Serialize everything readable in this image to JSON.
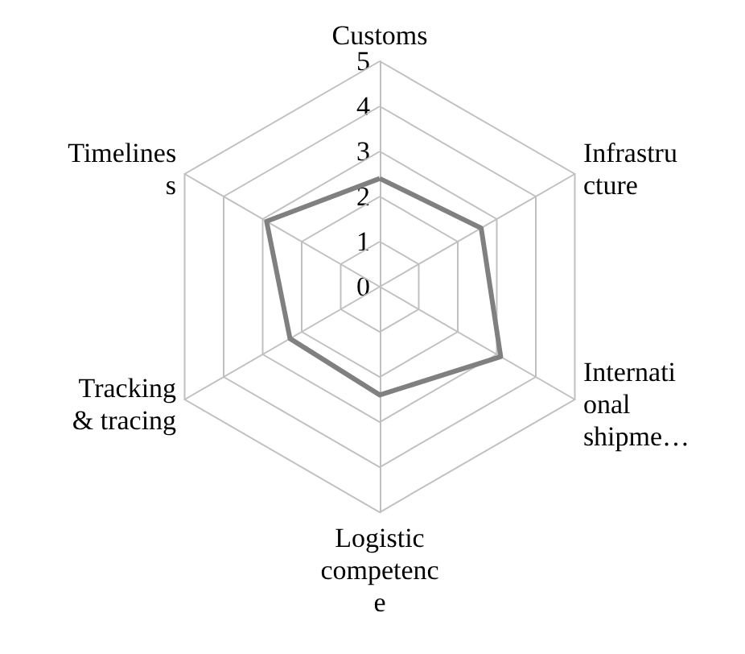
{
  "chart_data": {
    "type": "radar",
    "categories": [
      "Customs",
      "Infrastructure",
      "International shipme…",
      "Logistic competence",
      "Tracking & tracing",
      "Timeliness"
    ],
    "series": [
      {
        "color": "#808080",
        "values": [
          2.4,
          2.6,
          3.1,
          2.4,
          2.3,
          2.9
        ]
      }
    ],
    "ylim": [
      0,
      5
    ],
    "yticks": [
      0,
      1,
      2,
      3,
      4,
      5
    ],
    "grid": true,
    "marker": "none",
    "line_style": "solid"
  }
}
